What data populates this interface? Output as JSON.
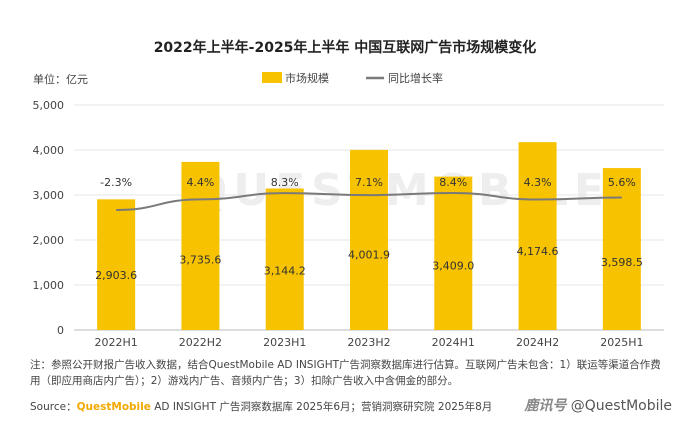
{
  "chart_data": {
    "type": "bar",
    "title": "2022年上半年-2025年上半年 中国互联网广告市场规模变化",
    "unit_label": "单位：亿元",
    "categories": [
      "2022H1",
      "2022H2",
      "2023H1",
      "2023H2",
      "2024H1",
      "2024H2",
      "2025H1"
    ],
    "series": [
      {
        "name": "市场规模",
        "type": "bar",
        "color": "#f7c200",
        "values": [
          2903.6,
          3735.6,
          3144.2,
          4001.9,
          3409.0,
          4174.6,
          3598.5
        ],
        "value_labels": [
          "2,903.6",
          "3,735.6",
          "3,144.2",
          "4,001.9",
          "3,409.0",
          "4,174.6",
          "3,598.5"
        ]
      },
      {
        "name": "同比增长率",
        "type": "line",
        "color": "#7a7a7a",
        "values": [
          -2.3,
          4.4,
          8.3,
          7.1,
          8.4,
          4.3,
          5.6
        ],
        "value_labels": [
          "-2.3%",
          "4.4%",
          "8.3%",
          "7.1%",
          "8.4%",
          "4.3%",
          "5.6%"
        ]
      }
    ],
    "ylim": [
      0,
      5000
    ],
    "yticks": [
      "0",
      "1,000",
      "2,000",
      "3,000",
      "4,000",
      "5,000"
    ],
    "legend_position": "top-center",
    "grid": true,
    "watermark": "QUESTMOBILE"
  },
  "footer": {
    "note": "注：参照公开财报广告收入数据，结合QuestMobile AD INSIGHT广告洞察数据库进行估算。互联网广告未包含：1）联运等渠道合作费用（即应用商店内广告）；2）游戏内广告、音频内广告；3）扣除广告收入中含佣金的部分。",
    "source_prefix": "Source：",
    "source_brand": "QuestMobile",
    "source_rest": " AD INSIGHT 广告洞察数据库 2025年6月；营销洞察研究院 2025年8月",
    "publisher": "鹿讯号",
    "credit": " @QuestMobile"
  }
}
